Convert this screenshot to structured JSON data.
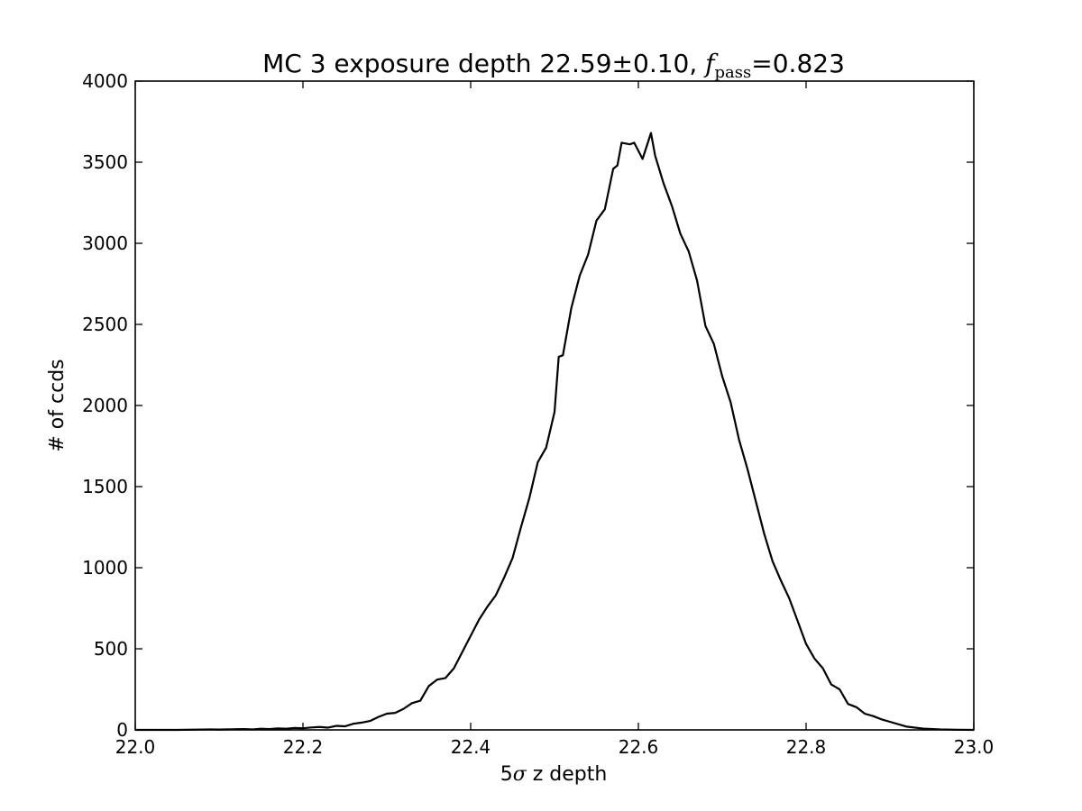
{
  "chart_data": {
    "type": "line",
    "title": {
      "prefix": "MC 3 exposure depth 22.59",
      "pm": "±",
      "err": "0.10, ",
      "f": "f",
      "sub": "pass",
      "eq": "=",
      "value": "0.823"
    },
    "xlabel": {
      "prefix": "5",
      "sigma": "σ",
      "rest": " z depth"
    },
    "ylabel": "# of ccds",
    "xlim": [
      22.0,
      23.0
    ],
    "ylim": [
      0,
      4000
    ],
    "xticks": [
      22.0,
      22.2,
      22.4,
      22.6,
      22.8,
      23.0
    ],
    "xtick_labels": [
      "22.0",
      "22.2",
      "22.4",
      "22.6",
      "22.8",
      "23.0"
    ],
    "yticks": [
      0,
      500,
      1000,
      1500,
      2000,
      2500,
      3000,
      3500,
      4000
    ],
    "ytick_labels": [
      "0",
      "500",
      "1000",
      "1500",
      "2000",
      "2500",
      "3000",
      "3500",
      "4000"
    ],
    "series": [
      {
        "color": "#000000",
        "x": [
          22.0,
          22.05,
          22.09,
          22.1,
          22.12,
          22.13,
          22.14,
          22.15,
          22.16,
          22.17,
          22.18,
          22.19,
          22.2,
          22.21,
          22.22,
          22.23,
          22.24,
          22.25,
          22.26,
          22.27,
          22.28,
          22.29,
          22.3,
          22.31,
          22.32,
          22.33,
          22.34,
          22.35,
          22.36,
          22.37,
          22.38,
          22.39,
          22.4,
          22.41,
          22.42,
          22.43,
          22.44,
          22.45,
          22.46,
          22.47,
          22.48,
          22.49,
          22.5,
          22.505,
          22.51,
          22.52,
          22.53,
          22.54,
          22.55,
          22.56,
          22.57,
          22.575,
          22.58,
          22.59,
          22.595,
          22.605,
          22.615,
          22.62,
          22.63,
          22.64,
          22.65,
          22.66,
          22.67,
          22.68,
          22.69,
          22.7,
          22.71,
          22.72,
          22.73,
          22.74,
          22.75,
          22.76,
          22.77,
          22.78,
          22.79,
          22.8,
          22.81,
          22.82,
          22.83,
          22.84,
          22.85,
          22.86,
          22.87,
          22.88,
          22.89,
          22.9,
          22.92,
          22.94,
          22.96,
          22.98,
          23.0
        ],
        "y": [
          0,
          0,
          3,
          2,
          4,
          5,
          3,
          7,
          5,
          9,
          7,
          12,
          10,
          15,
          18,
          14,
          25,
          22,
          38,
          45,
          55,
          80,
          100,
          105,
          130,
          165,
          180,
          270,
          310,
          320,
          380,
          480,
          580,
          680,
          760,
          830,
          940,
          1060,
          1250,
          1430,
          1650,
          1740,
          1960,
          2300,
          2310,
          2600,
          2800,
          2930,
          3140,
          3210,
          3460,
          3480,
          3620,
          3610,
          3620,
          3520,
          3680,
          3540,
          3370,
          3230,
          3060,
          2950,
          2770,
          2490,
          2380,
          2180,
          2020,
          1790,
          1610,
          1410,
          1210,
          1040,
          920,
          810,
          670,
          530,
          440,
          380,
          280,
          250,
          160,
          140,
          100,
          85,
          65,
          50,
          20,
          8,
          3,
          1,
          0
        ]
      }
    ]
  }
}
